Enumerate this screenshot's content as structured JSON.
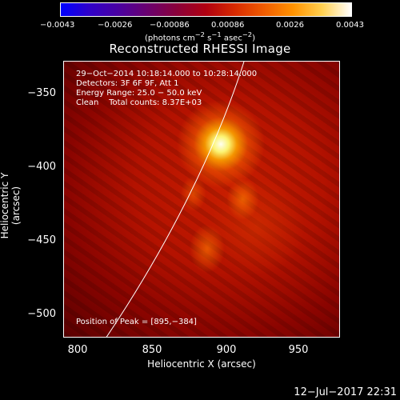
{
  "colorbar": {
    "ticks": [
      "−0.0043",
      "−0.0026",
      "−0.00086",
      "0.00086",
      "0.0026",
      "0.0043"
    ],
    "units_prefix": "(photons cm",
    "units_exp1": "−2",
    "units_mid": " s",
    "units_exp2": "−1",
    "units_mid2": " asec",
    "units_exp3": "−2",
    "units_suffix": ")"
  },
  "title": "Reconstructed RHESSI Image",
  "info": {
    "line1": "29−Oct−2014 10:18:14.000 to 10:28:14.000",
    "line2": "Detectors: 3F 6F 9F, Att 1",
    "line3": "Energy Range: 25.0 − 50.0 keV",
    "line4": "Clean    Total counts: 8.37E+03",
    "peak": "Position of Peak = [895,−384]"
  },
  "axes": {
    "xlabel": "Heliocentric X (arcsec)",
    "ylabel": "Heliocentric Y (arcsec)",
    "xticks": [
      "800",
      "850",
      "900",
      "950"
    ],
    "yticks": [
      "−350",
      "−400",
      "−450",
      "−500"
    ]
  },
  "timestamp": "12−Jul−2017 22:31"
}
